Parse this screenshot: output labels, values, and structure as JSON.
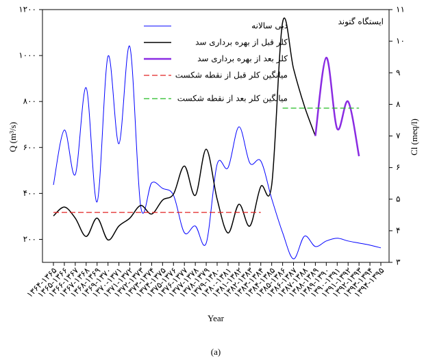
{
  "chart_data": {
    "type": "line",
    "annotation": "ایستگاه گتوند",
    "xlabel": "Year",
    "ylabel": "Q (m³/s)",
    "y2label": "Cl (meq/l)",
    "caption": "(a)",
    "categories": [
      "۱۳۶۴-۱۳۶۵",
      "۱۳۶۵-۱۳۶۶",
      "۱۳۶۶-۱۳۶۷",
      "۱۳۶۷-۱۳۶۸",
      "۱۳۶۸-۱۳۶۹",
      "۱۳۶۹-۱۳۷۰",
      "۱۳۷۰-۱۳۷۱",
      "۱۳۷۱-۱۳۷۲",
      "۱۳۷۲-۱۳۷۳",
      "۱۳۷۳-۱۳۷۴",
      "۱۳۷۴-۱۳۷۵",
      "۱۳۷۵-۱۳۷۶",
      "۱۳۷۶-۱۳۷۷",
      "۱۳۷۷-۱۳۷۸",
      "۱۳۷۸-۱۳۷۹",
      "۱۳۷۹-۱۳۸۰",
      "۱۳۸۰-۱۳۸۱",
      "۱۳۸۱-۱۳۸۲",
      "۱۳۸۲-۱۳۸۳",
      "۱۳۸۳-۱۳۸۴",
      "۱۳۸۴-۱۳۸۵",
      "۱۳۸۵-۱۳۸۶",
      "۱۳۸۶-۱۳۸۷",
      "۱۳۸۷-۱۳۸۸",
      "۱۳۸۸-۱۳۸۹",
      "۱۳۸۹-۱۳۹۰",
      "۱۳۹۰-۱۳۹۱",
      "۱۳۹۱-۱۳۹۲",
      "۱۳۹۲-۱۳۹۳",
      "۱۳۹۳-۱۳۹۴",
      "۱۳۹۴-۱۳۹۵"
    ],
    "series": [
      {
        "name": "دبی سالانه",
        "color": "#0000ff",
        "width": 1,
        "axis": "y",
        "values": [
          437,
          676,
          482,
          860,
          363,
          997,
          616,
          1039,
          342,
          446,
          422,
          392,
          229,
          258,
          184,
          527,
          512,
          690,
          532,
          541,
          377,
          229,
          115,
          214,
          169,
          193,
          205,
          193,
          184,
          175,
          163
        ]
      },
      {
        "name": "کلر قبل از بهره برداری سد",
        "color": "#000000",
        "width": 1.5,
        "axis": "y2",
        "values": [
          4.47,
          4.75,
          4.4,
          3.82,
          4.4,
          3.71,
          4.15,
          4.4,
          4.8,
          4.53,
          4.97,
          5.16,
          6.05,
          5.12,
          6.58,
          5.0,
          3.93,
          4.84,
          4.15,
          5.4,
          5.45,
          10.6,
          9.13,
          7.94,
          7.0,
          null,
          null,
          null,
          null,
          null,
          null
        ]
      },
      {
        "name": "کلر بعد از بهره برداری سد",
        "color": "#8a2be2",
        "width": 2.5,
        "axis": "y2",
        "values": [
          null,
          null,
          null,
          null,
          null,
          null,
          null,
          null,
          null,
          null,
          null,
          null,
          null,
          null,
          null,
          null,
          null,
          null,
          null,
          null,
          null,
          null,
          null,
          null,
          7.0,
          9.48,
          7.23,
          8.09,
          6.36,
          null,
          null
        ]
      },
      {
        "name": "میانگین کلر قبل از نقطه شکست",
        "color": "#e02020",
        "width": 1.3,
        "dash": true,
        "axis": "y2",
        "values": [
          4.58,
          4.58,
          4.58,
          4.58,
          4.58,
          4.58,
          4.58,
          4.58,
          4.58,
          4.58,
          4.58,
          4.58,
          4.58,
          4.58,
          4.58,
          4.58,
          4.58,
          4.58,
          4.58,
          4.58,
          null,
          null,
          null,
          null,
          null,
          null,
          null,
          null,
          null,
          null,
          null
        ]
      },
      {
        "name": "میانگین کلر بعد از نقطه شکست",
        "color": "#22bb22",
        "width": 1.3,
        "dash": true,
        "axis": "y2",
        "values": [
          null,
          null,
          null,
          null,
          null,
          null,
          null,
          null,
          null,
          null,
          null,
          null,
          null,
          null,
          null,
          null,
          null,
          null,
          null,
          null,
          null,
          7.88,
          7.88,
          7.88,
          7.88,
          7.88,
          7.88,
          7.88,
          7.88,
          null,
          null
        ]
      }
    ],
    "ylim": [
      100,
      1200
    ],
    "yticks": [
      {
        "value": 200,
        "label": "۲۰۰"
      },
      {
        "value": 400,
        "label": "۴۰۰"
      },
      {
        "value": 600,
        "label": "۶۰۰"
      },
      {
        "value": 800,
        "label": "۸۰۰"
      },
      {
        "value": 1000,
        "label": "۱۰۰۰"
      },
      {
        "value": 1200,
        "label": "۱۲۰۰"
      }
    ],
    "y2lim": [
      3,
      11
    ],
    "y2ticks": [
      {
        "value": 3,
        "label": "۳"
      },
      {
        "value": 4,
        "label": "۴"
      },
      {
        "value": 5,
        "label": "۵"
      },
      {
        "value": 6,
        "label": "۶"
      },
      {
        "value": 7,
        "label": "۷"
      },
      {
        "value": 8,
        "label": "۸"
      },
      {
        "value": 9,
        "label": "۹"
      },
      {
        "value": 10,
        "label": "۱۰"
      },
      {
        "value": 11,
        "label": "۱۱"
      }
    ]
  }
}
